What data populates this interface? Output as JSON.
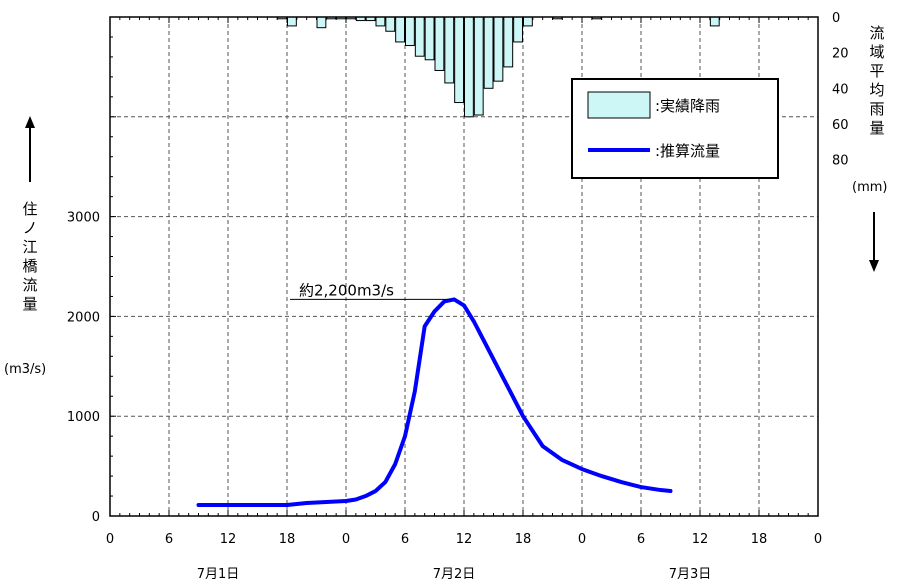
{
  "chart_data": {
    "type": "bar+line",
    "x_axis": {
      "tick_labels": [
        "0",
        "6",
        "12",
        "18",
        "0",
        "6",
        "12",
        "18",
        "0",
        "6",
        "12",
        "18",
        "0"
      ],
      "day_labels": [
        "7月1日",
        "7月2日",
        "7月3日"
      ],
      "hours_range": [
        0,
        72
      ]
    },
    "y_left": {
      "label": "住ノ江橋流量",
      "unit": "(m3/s)",
      "ticks": [
        "0",
        "1000",
        "2000",
        "3000"
      ],
      "range": [
        0,
        5000
      ]
    },
    "y_right": {
      "label": "流域平均雨量",
      "unit": "(mm)",
      "ticks": [
        "0",
        "20",
        "40",
        "60",
        "80"
      ],
      "range": [
        0,
        280
      ],
      "inverted": true
    },
    "legend": {
      "placement": "top-right",
      "items": [
        {
          "label": ":実績降雨",
          "kind": "bar",
          "color": "#cdf7f7"
        },
        {
          "label": ":推算流量",
          "kind": "line",
          "color": "#0000ff"
        }
      ]
    },
    "annotation": {
      "text": "約2,200m3/s",
      "at_hour": 35,
      "value": 2170
    },
    "series": [
      {
        "name": "実績降雨",
        "type": "bar",
        "color": "#cdf7f7",
        "x": [
          17,
          18,
          21,
          22,
          23,
          24,
          25,
          26,
          27,
          28,
          29,
          30,
          31,
          32,
          33,
          34,
          35,
          36,
          37,
          38,
          39,
          40,
          41,
          42,
          45,
          49,
          61
        ],
        "values": [
          1,
          5,
          6,
          1,
          1,
          1,
          2,
          2,
          5,
          8,
          14,
          16,
          22,
          24,
          30,
          37,
          48,
          56,
          55,
          40,
          36,
          28,
          14,
          5,
          1,
          1,
          5
        ]
      },
      {
        "name": "推算流量",
        "type": "line",
        "color": "#0000ff",
        "x": [
          9,
          12,
          15,
          18,
          20,
          22,
          24,
          25,
          26,
          27,
          28,
          29,
          30,
          31,
          32,
          33,
          34,
          35,
          36,
          37,
          38,
          39,
          40,
          42,
          44,
          46,
          48,
          50,
          52,
          54,
          56,
          57
        ],
        "values": [
          110,
          110,
          110,
          110,
          130,
          140,
          150,
          165,
          200,
          250,
          340,
          520,
          800,
          1250,
          1900,
          2050,
          2150,
          2170,
          2110,
          1950,
          1760,
          1570,
          1380,
          1000,
          700,
          560,
          470,
          400,
          340,
          290,
          260,
          250
        ]
      }
    ]
  }
}
